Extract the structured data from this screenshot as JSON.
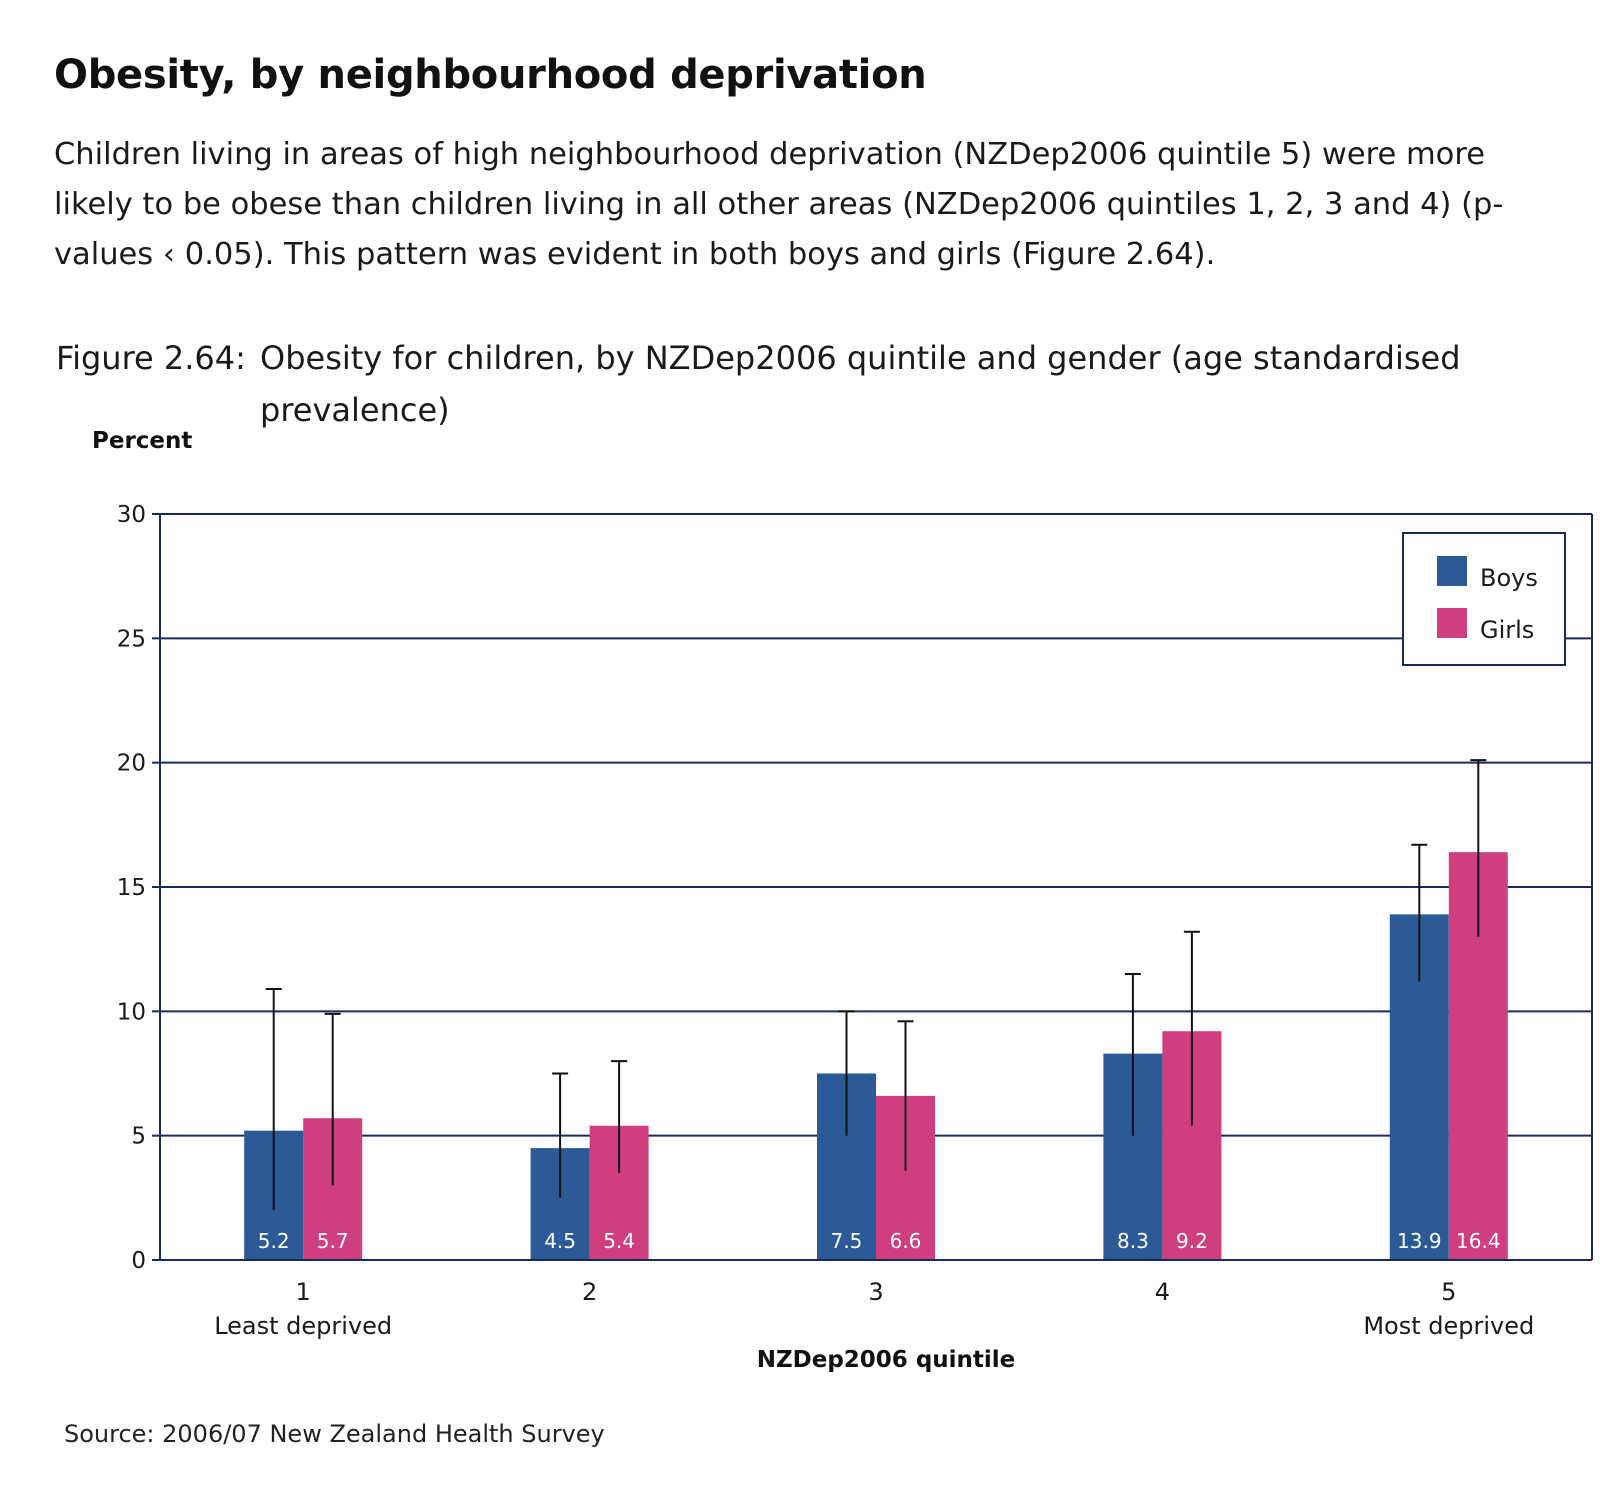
{
  "heading": "Obesity, by neighbourhood deprivation",
  "intro": "Children living in areas of high neighbourhood deprivation (NZDep2006 quintile 5) were more likely to be obese than children living in all other areas (NZDep2006 quintiles 1, 2, 3 and 4) (p-values ‹ 0.05).  This pattern was evident in both boys and girls (Figure 2.64).",
  "figure": {
    "number": "Figure 2.64:",
    "caption": "Obesity for children, by NZDep2006 quintile and gender (age standardised prevalence)"
  },
  "source": "Source: 2006/07 New Zealand Health Survey",
  "colors": {
    "boys": "#2b5a96",
    "girls": "#cf3f80",
    "axis": "#1b2a5c",
    "grid": "#1b2a5c"
  },
  "chart_data": {
    "type": "bar",
    "ylabel": "Percent",
    "xlabel": "NZDep2006 quintile",
    "ylim": [
      0,
      30
    ],
    "yticks": [
      0,
      5,
      10,
      15,
      20,
      25,
      30
    ],
    "grid": true,
    "legend_position": "top-right",
    "categories": [
      "1",
      "2",
      "3",
      "4",
      "5"
    ],
    "category_sublabels": [
      "Least deprived",
      "",
      "",
      "",
      "Most deprived"
    ],
    "series": [
      {
        "name": "Boys",
        "values": [
          5.2,
          4.5,
          7.5,
          8.3,
          13.9
        ],
        "labels": [
          "5.2",
          "4.5",
          "7.5",
          "8.3",
          "13.9"
        ],
        "ci_low": [
          2.0,
          2.5,
          5.0,
          5.0,
          11.2
        ],
        "ci_high": [
          10.9,
          7.5,
          10.0,
          11.5,
          16.7
        ]
      },
      {
        "name": "Girls",
        "values": [
          5.7,
          5.4,
          6.6,
          9.2,
          16.4
        ],
        "labels": [
          "5.7",
          "5.4",
          "6.6",
          "9.2",
          "16.4"
        ],
        "ci_low": [
          3.0,
          3.5,
          3.6,
          5.4,
          13.0
        ],
        "ci_high": [
          9.9,
          8.0,
          9.6,
          13.2,
          20.1
        ]
      }
    ]
  }
}
